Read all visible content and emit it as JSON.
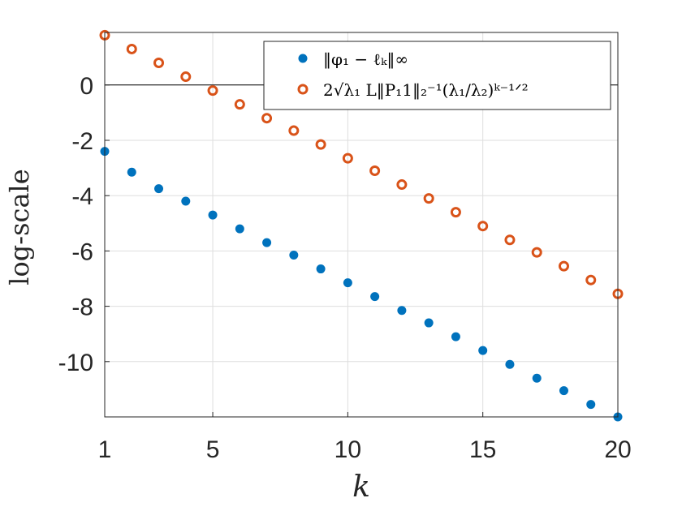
{
  "chart_data": {
    "type": "scatter",
    "title": "",
    "xlabel": "k",
    "ylabel": "log-scale",
    "xlim": [
      1,
      20
    ],
    "ylim": [
      -12,
      1.9
    ],
    "xticks": [
      1,
      5,
      10,
      15,
      20
    ],
    "xtick_labels": [
      "1",
      "5",
      "10",
      "15",
      "20"
    ],
    "yticks": [
      -10,
      -8,
      -6,
      -4,
      -2,
      0
    ],
    "ytick_labels": [
      "-10",
      "-8",
      "-6",
      "-4",
      "-2",
      "0"
    ],
    "grid": true,
    "zero_line": true,
    "legend_position": "top-right",
    "x": [
      1,
      2,
      3,
      4,
      5,
      6,
      7,
      8,
      9,
      10,
      11,
      12,
      13,
      14,
      15,
      16,
      17,
      18,
      19,
      20
    ],
    "series": [
      {
        "name": "‖φ₁ − ℓₖ‖∞",
        "marker": "filled-circle",
        "color": "#0072BD",
        "values": [
          -2.4,
          -3.15,
          -3.75,
          -4.2,
          -4.7,
          -5.2,
          -5.7,
          -6.15,
          -6.65,
          -7.15,
          -7.65,
          -8.15,
          -8.6,
          -9.1,
          -9.6,
          -10.1,
          -10.6,
          -11.05,
          -11.55,
          -12.0
        ]
      },
      {
        "name": "2√λ₁ L‖P₁1‖₂⁻¹(λ₁/λ₂)ᵏ⁻¹ᐟ²",
        "marker": "open-circle",
        "color": "#D95319",
        "values": [
          1.8,
          1.3,
          0.8,
          0.3,
          -0.2,
          -0.7,
          -1.2,
          -1.65,
          -2.15,
          -2.65,
          -3.1,
          -3.6,
          -4.1,
          -4.6,
          -5.1,
          -5.6,
          -6.05,
          -6.55,
          -7.05,
          -7.55
        ]
      }
    ]
  }
}
